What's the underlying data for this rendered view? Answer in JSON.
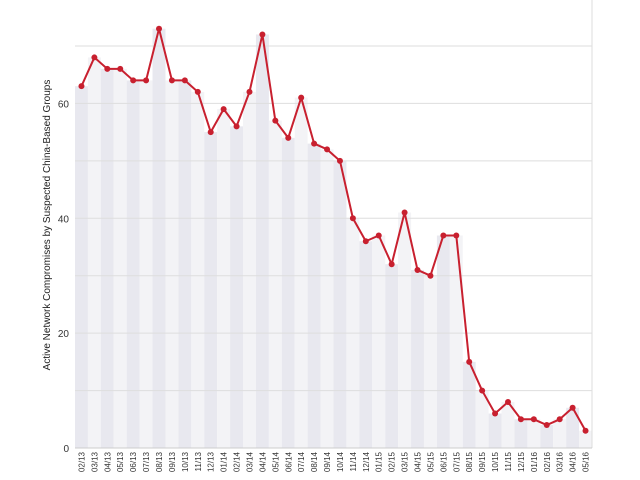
{
  "chart_data": {
    "type": "line",
    "title": "",
    "xlabel": "",
    "ylabel": "Active Network Compromises by Suspected China-Based Groups",
    "ylim": [
      0,
      78
    ],
    "yticks": [
      0,
      20,
      40,
      60
    ],
    "grid": true,
    "categories": [
      "02/13",
      "03/13",
      "04/13",
      "05/13",
      "06/13",
      "07/13",
      "08/13",
      "09/13",
      "10/13",
      "11/13",
      "12/13",
      "01/14",
      "02/14",
      "03/14",
      "04/14",
      "05/14",
      "06/14",
      "07/14",
      "08/14",
      "09/14",
      "10/14",
      "11/14",
      "12/14",
      "01/15",
      "02/15",
      "03/15",
      "04/15",
      "05/15",
      "06/15",
      "07/15",
      "08/15",
      "09/15",
      "10/15",
      "11/15",
      "12/15",
      "01/16",
      "02/16",
      "03/16",
      "04/16",
      "05/16"
    ],
    "series": [
      {
        "name": "",
        "color": "#c8202f",
        "values": [
          63,
          68,
          66,
          66,
          64,
          64,
          73,
          64,
          64,
          62,
          55,
          59,
          56,
          62,
          72,
          57,
          54,
          61,
          53,
          52,
          50,
          40,
          36,
          37,
          32,
          41,
          31,
          30,
          37,
          37,
          15,
          10,
          6,
          8,
          5,
          5,
          4,
          5,
          7,
          3
        ]
      }
    ],
    "band_colors": [
      "#e8e8ef",
      "#f3f3f6"
    ]
  }
}
